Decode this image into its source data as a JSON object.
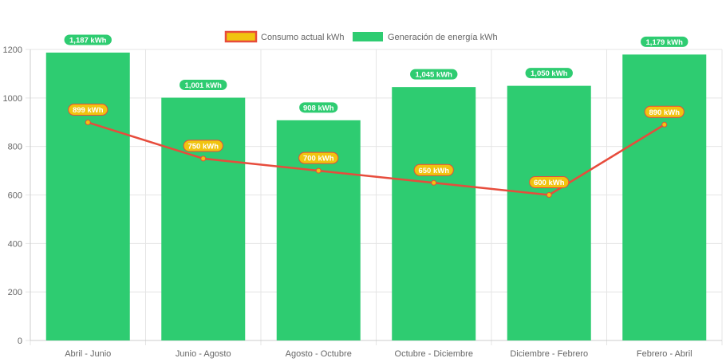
{
  "chart_data": {
    "type": "bar",
    "categories": [
      "Abril - Junio",
      "Junio - Agosto",
      "Agosto - Octubre",
      "Octubre - Diciembre",
      "Diciembre - Febrero",
      "Febrero - Abril"
    ],
    "series": [
      {
        "name": "Consumo actual kWh",
        "type": "line",
        "values": [
          899,
          750,
          700,
          650,
          600,
          890
        ],
        "labels": [
          "899 kWh",
          "750 kWh",
          "700 kWh",
          "650 kWh",
          "600 kWh",
          "890 kWh"
        ],
        "color": "#e74c3c",
        "fill": "#f1c40f"
      },
      {
        "name": "Generación de energía kWh",
        "type": "bar",
        "values": [
          1187,
          1001,
          908,
          1045,
          1050,
          1179
        ],
        "labels": [
          "1,187 kWh",
          "1,001 kWh",
          "908 kWh",
          "1,045 kWh",
          "1,050 kWh",
          "1,179 kWh"
        ],
        "color": "#2ecc71"
      }
    ],
    "yticks": [
      "0",
      "200",
      "400",
      "600",
      "800",
      "1000",
      "1200"
    ],
    "ylim": [
      0,
      1200
    ],
    "grid": true,
    "legend": "top"
  }
}
